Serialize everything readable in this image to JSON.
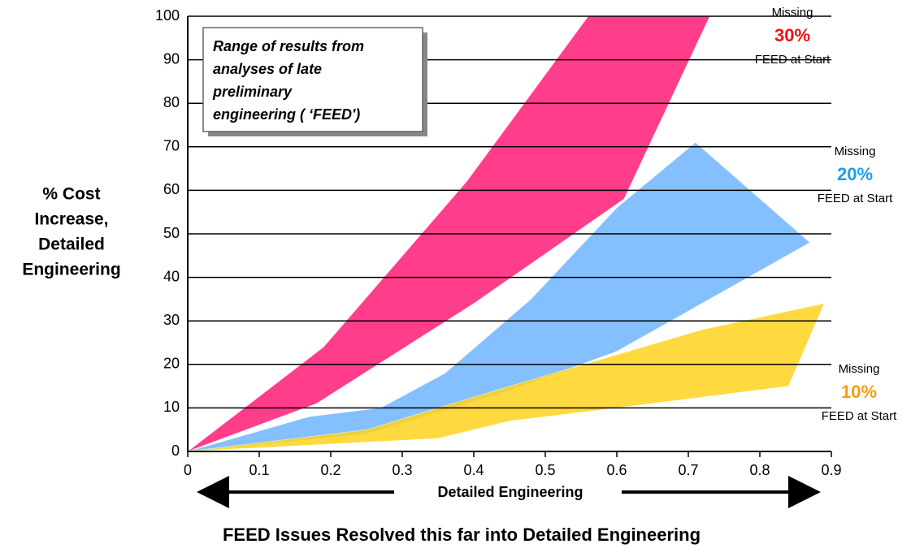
{
  "chart_data": {
    "type": "range-area",
    "ylabel": [
      "% Cost",
      "Increase,",
      "Detailed",
      "Engineering"
    ],
    "xlabel": "Detailed Engineering",
    "title": "FEED Issues Resolved this far into Detailed Engineering",
    "annotation": [
      "Range of results from",
      "analyses of late",
      "preliminary",
      "engineering ( ‘FEED')"
    ],
    "xlim": [
      0,
      0.9
    ],
    "ylim": [
      0,
      100
    ],
    "xticks": [
      0,
      0.1,
      0.2,
      0.3,
      0.4,
      0.5,
      0.6,
      0.7,
      0.8,
      0.9
    ],
    "yticks": [
      0,
      10,
      20,
      30,
      40,
      50,
      60,
      70,
      80,
      90,
      100
    ],
    "grid": true,
    "series": [
      {
        "label": [
          "Missing",
          "30%",
          "FEED at Start"
        ],
        "color": "#ff3d8a",
        "label_color": "#ee1111",
        "opacity": 1,
        "x": [
          0,
          0.19,
          0.39,
          0.56,
          0.73
        ],
        "upper": [
          0,
          24,
          62,
          100,
          100
        ],
        "x_lower": [
          0,
          0.18,
          0.4,
          0.61,
          0.73
        ],
        "lower": [
          0,
          11,
          34,
          58,
          100
        ]
      },
      {
        "label": [
          "Missing",
          "20%",
          "FEED at Start"
        ],
        "color": "#55a8ff",
        "label_color": "#1e9ee8",
        "opacity": 0.72,
        "x": [
          0,
          0.17,
          0.27,
          0.36,
          0.48,
          0.6,
          0.71,
          0.87
        ],
        "upper": [
          0,
          8,
          10,
          18,
          35,
          56,
          71,
          48
        ],
        "x_lower": [
          0,
          0.25,
          0.45,
          0.6,
          0.87
        ],
        "lower": [
          0,
          4,
          14,
          23,
          48
        ]
      },
      {
        "label": [
          "Missing",
          "10%",
          "FEED at Start"
        ],
        "color": "#ffd21e",
        "label_color": "#ff9a10",
        "opacity": 0.85,
        "x": [
          0,
          0.25,
          0.45,
          0.72,
          0.89
        ],
        "upper": [
          0,
          5,
          15,
          28,
          34
        ],
        "x_lower": [
          0,
          0.35,
          0.45,
          0.6,
          0.84,
          0.89
        ],
        "lower": [
          0,
          3,
          7,
          10,
          15,
          34
        ]
      }
    ]
  }
}
